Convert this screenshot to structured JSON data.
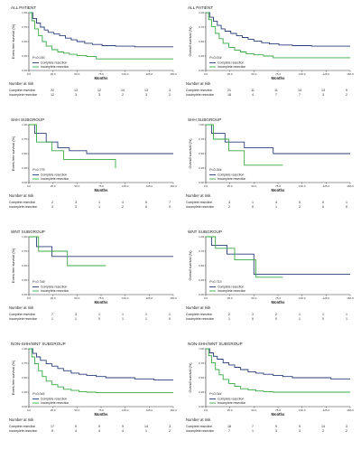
{
  "colors": {
    "complete": "#2b3f7a",
    "incomplete": "#3aa845",
    "axis": "#333333"
  },
  "panels_text": {
    "xlabel": "Months",
    "risk_title": "Number at risk",
    "legend_complete": "Complete resection",
    "legend_incomplete": "Incomplete resection",
    "risk_complete": "Complete resection",
    "risk_incomplete": "Incomplete resection"
  },
  "chart_data": [
    {
      "type": "line",
      "group": "ALL PATIENT",
      "ylabel": "Event-free survival (%)",
      "p_value": "P=0.030",
      "xlim": [
        0,
        150
      ],
      "ylim": [
        0,
        1
      ],
      "series": [
        {
          "name": "Complete resection",
          "x": [
            0,
            4,
            8,
            12,
            16,
            20,
            26,
            32,
            38,
            44,
            50,
            58,
            66,
            76,
            90,
            110,
            150
          ],
          "y": [
            1,
            0.9,
            0.82,
            0.75,
            0.7,
            0.66,
            0.63,
            0.6,
            0.56,
            0.53,
            0.5,
            0.47,
            0.45,
            0.43,
            0.42,
            0.41,
            0.41
          ]
        },
        {
          "name": "Incomplete resection",
          "x": [
            0,
            3,
            6,
            10,
            14,
            18,
            24,
            30,
            36,
            42,
            50,
            60,
            70,
            150
          ],
          "y": [
            1,
            0.86,
            0.72,
            0.6,
            0.5,
            0.42,
            0.36,
            0.32,
            0.3,
            0.28,
            0.26,
            0.24,
            0.2,
            0.2
          ]
        }
      ],
      "risk_complete": [
        "22",
        "13",
        "12",
        "14",
        "13",
        "3"
      ],
      "risk_incomplete": [
        "12",
        "3",
        "3",
        "2",
        "3",
        "2"
      ]
    },
    {
      "type": "line",
      "group": "ALL PATIENT",
      "ylabel": "Overall survival (%)",
      "p_value": "P=0.034",
      "xlim": [
        0,
        150
      ],
      "ylim": [
        0,
        1
      ],
      "series": [
        {
          "name": "Complete resection",
          "x": [
            0,
            4,
            8,
            12,
            16,
            20,
            26,
            32,
            38,
            44,
            50,
            58,
            66,
            76,
            90,
            110,
            150
          ],
          "y": [
            1,
            0.92,
            0.85,
            0.78,
            0.72,
            0.68,
            0.64,
            0.6,
            0.57,
            0.54,
            0.51,
            0.48,
            0.46,
            0.44,
            0.43,
            0.42,
            0.42
          ]
        },
        {
          "name": "Incomplete resection",
          "x": [
            0,
            3,
            6,
            10,
            14,
            18,
            24,
            30,
            36,
            42,
            50,
            60,
            70,
            150
          ],
          "y": [
            1,
            0.88,
            0.76,
            0.64,
            0.55,
            0.47,
            0.4,
            0.35,
            0.32,
            0.29,
            0.27,
            0.25,
            0.22,
            0.22
          ]
        }
      ],
      "risk_complete": [
        "21",
        "11",
        "11",
        "14",
        "13",
        "5"
      ],
      "risk_incomplete": [
        "18",
        "4",
        "7",
        "7",
        "3",
        "2"
      ]
    },
    {
      "type": "line",
      "group": "SHH SUBGROUP",
      "ylabel": "Event-free survival (%)",
      "p_value": "P=0.776",
      "xlim": [
        0,
        150
      ],
      "ylim": [
        0,
        1
      ],
      "series": [
        {
          "name": "Complete resection",
          "x": [
            0,
            6,
            12,
            18,
            24,
            30,
            36,
            42,
            50,
            60,
            70,
            80,
            100,
            120,
            150
          ],
          "y": [
            1,
            0.85,
            0.85,
            0.7,
            0.7,
            0.6,
            0.6,
            0.55,
            0.55,
            0.5,
            0.5,
            0.5,
            0.5,
            0.5,
            0.5
          ]
        },
        {
          "name": "Incomplete resection",
          "x": [
            0,
            8,
            16,
            24,
            30,
            36,
            44,
            52,
            60,
            70,
            90
          ],
          "y": [
            1,
            0.7,
            0.7,
            0.55,
            0.55,
            0.4,
            0.4,
            0.4,
            0.4,
            0.4,
            0.25
          ]
        }
      ],
      "risk_complete": [
        "2",
        "3",
        "1",
        "4",
        "0",
        "7"
      ],
      "risk_incomplete": [
        "3",
        "3",
        "1",
        "2",
        "0",
        "0"
      ]
    },
    {
      "type": "line",
      "group": "SHH SUBGROUP",
      "ylabel": "Overall survival (%)",
      "p_value": "P=0.364",
      "xlim": [
        0,
        150
      ],
      "ylim": [
        0,
        1
      ],
      "series": [
        {
          "name": "Complete resection",
          "x": [
            0,
            6,
            12,
            20,
            30,
            40,
            50,
            60,
            70,
            80,
            100,
            120,
            150
          ],
          "y": [
            1,
            0.85,
            0.85,
            0.7,
            0.7,
            0.6,
            0.6,
            0.6,
            0.5,
            0.5,
            0.5,
            0.5,
            0.5
          ]
        },
        {
          "name": "Incomplete resection",
          "x": [
            0,
            8,
            16,
            24,
            32,
            40,
            50,
            60,
            70,
            80
          ],
          "y": [
            1,
            0.75,
            0.75,
            0.55,
            0.55,
            0.3,
            0.3,
            0.3,
            0.3,
            0.3
          ]
        }
      ],
      "risk_complete": [
        "3",
        "1",
        "4",
        "0",
        "0",
        "1"
      ],
      "risk_incomplete": [
        "2",
        "0",
        "1",
        "2",
        "0",
        "0"
      ]
    },
    {
      "type": "line",
      "group": "WNT SUBGROUP",
      "ylabel": "Event-free survival (%)",
      "p_value": "P=0.749",
      "xlim": [
        0,
        150
      ],
      "ylim": [
        0,
        1
      ],
      "series": [
        {
          "name": "Complete resection",
          "x": [
            0,
            8,
            16,
            24,
            32,
            40,
            50,
            60,
            70,
            80,
            90,
            110,
            150
          ],
          "y": [
            1,
            0.83,
            0.83,
            0.66,
            0.66,
            0.66,
            0.66,
            0.66,
            0.66,
            0.66,
            0.66,
            0.66,
            0.66
          ]
        },
        {
          "name": "Incomplete resection",
          "x": [
            0,
            10,
            20,
            30,
            40,
            50,
            60,
            80
          ],
          "y": [
            1,
            0.75,
            0.75,
            0.75,
            0.5,
            0.5,
            0.5,
            0.5
          ]
        }
      ],
      "risk_complete": [
        "7",
        "3",
        "1",
        "1",
        "1",
        "1"
      ],
      "risk_incomplete": [
        "1",
        "1",
        "0",
        "1",
        "1",
        "0"
      ]
    },
    {
      "type": "line",
      "group": "WNT SUBGROUP",
      "ylabel": "Overall survival (%)",
      "p_value": "P=0.713",
      "xlim": [
        0,
        150
      ],
      "ylim": [
        0,
        1
      ],
      "series": [
        {
          "name": "Complete resection",
          "x": [
            0,
            6,
            14,
            22,
            30,
            40,
            50,
            60,
            70,
            80,
            100,
            130,
            150
          ],
          "y": [
            1,
            0.85,
            0.85,
            0.7,
            0.7,
            0.7,
            0.35,
            0.35,
            0.35,
            0.35,
            0.35,
            0.35,
            0.35
          ]
        },
        {
          "name": "Incomplete resection",
          "x": [
            0,
            10,
            20,
            30,
            40,
            50,
            52,
            60,
            80
          ],
          "y": [
            1,
            0.8,
            0.8,
            0.6,
            0.6,
            0.6,
            0.3,
            0.3,
            0.3
          ]
        }
      ],
      "risk_complete": [
        "2",
        "3",
        "2",
        "1",
        "1",
        "1"
      ],
      "risk_incomplete": [
        "1",
        "0",
        "0",
        "1",
        "0",
        "1"
      ]
    },
    {
      "type": "line",
      "group": "NON-SHH/WNT SUBGROUP",
      "ylabel": "Event-free survival (%)",
      "p_value": "P=0.044",
      "xlim": [
        0,
        150
      ],
      "ylim": [
        0,
        1
      ],
      "series": [
        {
          "name": "Complete resection",
          "x": [
            0,
            4,
            8,
            12,
            18,
            24,
            30,
            36,
            44,
            52,
            60,
            70,
            80,
            90,
            110,
            130,
            150
          ],
          "y": [
            1,
            0.92,
            0.86,
            0.8,
            0.74,
            0.7,
            0.66,
            0.62,
            0.58,
            0.56,
            0.54,
            0.52,
            0.5,
            0.5,
            0.48,
            0.46,
            0.46
          ]
        },
        {
          "name": "Incomplete resection",
          "x": [
            0,
            3,
            6,
            10,
            14,
            18,
            24,
            30,
            36,
            44,
            52,
            60,
            70,
            90,
            150
          ],
          "y": [
            1,
            0.86,
            0.74,
            0.62,
            0.52,
            0.44,
            0.38,
            0.34,
            0.3,
            0.28,
            0.26,
            0.25,
            0.24,
            0.24,
            0.24
          ]
        }
      ],
      "risk_complete": [
        "17",
        "9",
        "9",
        "9",
        "14",
        "3"
      ],
      "risk_incomplete": [
        "9",
        "4",
        "4",
        "4",
        "1",
        "2"
      ]
    },
    {
      "type": "line",
      "group": "NON-SHH/WNT SUBGROUP",
      "ylabel": "Overall survival (%)",
      "p_value": "P=0.044",
      "xlim": [
        0,
        150
      ],
      "ylim": [
        0,
        1
      ],
      "series": [
        {
          "name": "Complete resection",
          "x": [
            0,
            4,
            8,
            12,
            18,
            24,
            30,
            36,
            44,
            52,
            60,
            70,
            80,
            90,
            110,
            130,
            150
          ],
          "y": [
            1,
            0.93,
            0.87,
            0.82,
            0.76,
            0.72,
            0.68,
            0.64,
            0.6,
            0.58,
            0.56,
            0.54,
            0.52,
            0.5,
            0.5,
            0.48,
            0.48
          ]
        },
        {
          "name": "Incomplete resection",
          "x": [
            0,
            3,
            6,
            10,
            14,
            18,
            24,
            30,
            36,
            44,
            52,
            60,
            70,
            90,
            150
          ],
          "y": [
            1,
            0.88,
            0.76,
            0.64,
            0.55,
            0.47,
            0.4,
            0.35,
            0.31,
            0.29,
            0.27,
            0.26,
            0.25,
            0.25,
            0.25
          ]
        }
      ],
      "risk_complete": [
        "18",
        "7",
        "9",
        "9",
        "14",
        "3"
      ],
      "risk_incomplete": [
        "7",
        "1",
        "3",
        "3",
        "2",
        "2"
      ]
    }
  ]
}
